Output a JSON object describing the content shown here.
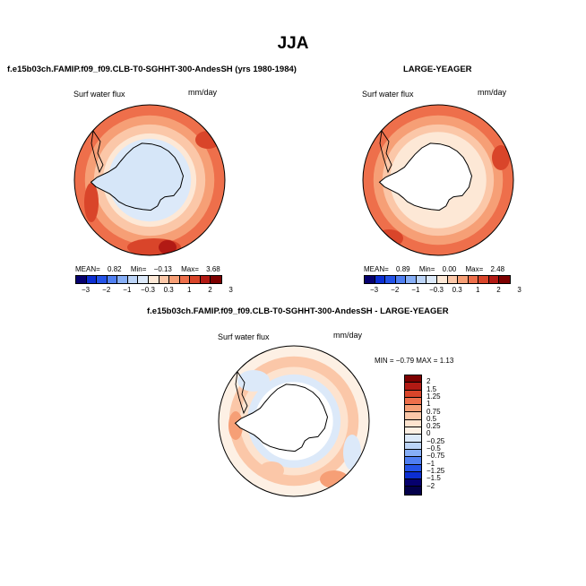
{
  "main_title": "JJA",
  "panel1": {
    "title": "f.e15b03ch.FAMIP.f09_f09.CLB-T0-SGHHT-300-AndesSH (yrs 1980-1984)",
    "variable": "Surf water flux",
    "units": "mm/day",
    "stats": {
      "mean_label": "MEAN=",
      "mean": "0.82",
      "min_label": "Min=",
      "min": "−0.13",
      "max_label": "Max=",
      "max": "3.68"
    }
  },
  "panel2": {
    "title": "LARGE-YEAGER",
    "variable": "Surf water flux",
    "units": "mm/day",
    "stats": {
      "mean_label": "MEAN=",
      "mean": "0.89",
      "min_label": "Min=",
      "min": "0.00",
      "max_label": "Max=",
      "max": "2.48"
    }
  },
  "panel3": {
    "title": "f.e15b03ch.FAMIP.f09_f09.CLB-T0-SGHHT-300-AndesSH - LARGE-YEAGER",
    "variable": "Surf water flux",
    "units": "mm/day",
    "minmax_text": "MIN =  −0.79  MAX =    1.13"
  },
  "chart_data": [
    {
      "type": "map",
      "title": "f.e15b03ch.FAMIP.f09_f09.CLB-T0-SGHHT-300-AndesSH (yrs 1980-1984)",
      "projection": "south-polar-stereographic",
      "variable": "Surf water flux",
      "units": "mm/day",
      "mean": 0.82,
      "min": -0.13,
      "max": 3.68,
      "colorbar_levels": [
        -3,
        -2,
        -1,
        -0.3,
        0.3,
        1,
        2,
        3
      ],
      "colorbar_tick_labels": [
        "−3",
        "−2",
        "−1",
        "−0.3",
        "0.3",
        "1",
        "2",
        "3"
      ],
      "colorbar_colors": [
        "#06006e",
        "#0c2ed2",
        "#2453e8",
        "#4f7ff2",
        "#86aef6",
        "#bcd4f7",
        "#dce9f9",
        "#fde8d6",
        "#fbc7a8",
        "#f69f76",
        "#ee6f4b",
        "#d9452a",
        "#b21a14",
        "#7d0000"
      ]
    },
    {
      "type": "map",
      "title": "LARGE-YEAGER",
      "projection": "south-polar-stereographic",
      "variable": "Surf water flux",
      "units": "mm/day",
      "mean": 0.89,
      "min": 0.0,
      "max": 2.48,
      "colorbar_levels": [
        -3,
        -2,
        -1,
        -0.3,
        0.3,
        1,
        2,
        3
      ],
      "colorbar_tick_labels": [
        "−3",
        "−2",
        "−1",
        "−0.3",
        "0.3",
        "1",
        "2",
        "3"
      ],
      "colorbar_colors": [
        "#06006e",
        "#0c2ed2",
        "#2453e8",
        "#4f7ff2",
        "#86aef6",
        "#bcd4f7",
        "#dce9f9",
        "#fde8d6",
        "#fbc7a8",
        "#f69f76",
        "#ee6f4b",
        "#d9452a",
        "#b21a14",
        "#7d0000"
      ]
    },
    {
      "type": "map",
      "title": "f.e15b03ch.FAMIP.f09_f09.CLB-T0-SGHHT-300-AndesSH - LARGE-YEAGER",
      "projection": "south-polar-stereographic",
      "variable": "Surf water flux",
      "units": "mm/day",
      "min": -0.79,
      "max": 1.13,
      "colorbar_levels": [
        2,
        1.5,
        1.25,
        1,
        0.75,
        0.5,
        0.25,
        0,
        -0.25,
        -0.5,
        -0.75,
        -1,
        -1.25,
        -1.5,
        -2
      ],
      "colorbar_tick_labels": [
        "2",
        "1.5",
        "1.25",
        "1",
        "0.75",
        "0.5",
        "0.25",
        "0",
        "−0.25",
        "−0.5",
        "−0.75",
        "−1",
        "−1.25",
        "−1.5",
        "−2"
      ],
      "colorbar_colors": [
        "#7d0000",
        "#b21a14",
        "#d9452a",
        "#ee6f4b",
        "#f69f76",
        "#fbc7a8",
        "#fde3cf",
        "#fdf0e4",
        "#dce9f9",
        "#bcd4f7",
        "#86aef6",
        "#4f7ff2",
        "#2453e8",
        "#0c2ed2",
        "#06006e",
        "#03004a"
      ]
    }
  ]
}
